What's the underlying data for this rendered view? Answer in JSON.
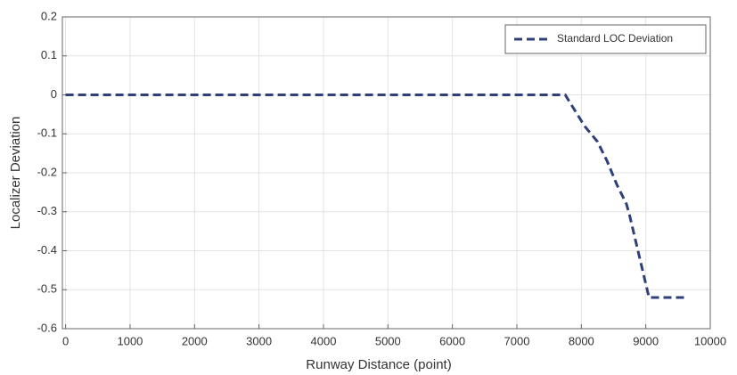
{
  "chart_data": {
    "type": "line",
    "x_label": "Runway Distance (point)",
    "y_label": "Localizer Deviation",
    "x": [
      0,
      7750,
      7900,
      8050,
      8150,
      8250,
      8400,
      8550,
      8700,
      8750,
      9050,
      9600
    ],
    "series": [
      {
        "name": "Standard LOC Deviation",
        "color": "#2e3f7a",
        "values": [
          0,
          0,
          -0.04,
          -0.08,
          -0.1,
          -0.12,
          -0.17,
          -0.23,
          -0.28,
          -0.31,
          -0.52,
          -0.52
        ]
      }
    ],
    "xlim": [
      -50,
      10000
    ],
    "ylim": [
      -0.6,
      0.2
    ],
    "xticks": [
      0,
      1000,
      2000,
      3000,
      4000,
      5000,
      6000,
      7000,
      8000,
      9000,
      10000
    ],
    "yticks": [
      0.2,
      0.1,
      0,
      -0.1,
      -0.2,
      -0.3,
      -0.4,
      -0.5,
      -0.6
    ],
    "grid": true,
    "legend": "top-right"
  }
}
